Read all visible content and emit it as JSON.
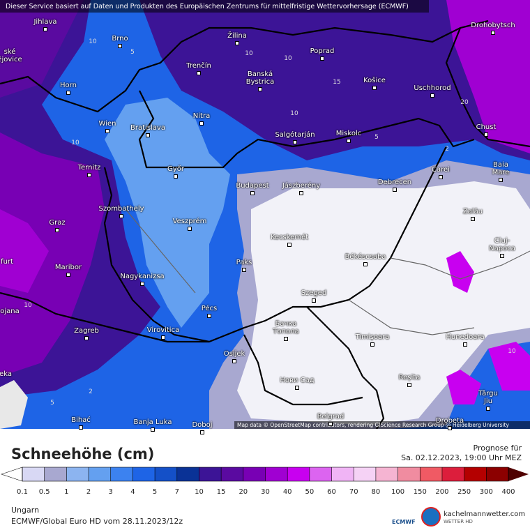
{
  "header": {
    "notice": "Dieser Service basiert auf Daten und Produkten des Europäischen Zentrums für mittelfristige Wettervorhersage (ECMWF)",
    "attribution": "Map data © OpenStreetMap contributors, rendering GIScience Research Group @ Heidelberg University"
  },
  "map": {
    "cities": [
      "Jihlava",
      "Brno",
      "Žilina",
      "Poprad",
      "Drohobytsch",
      "Trenčín",
      "Banská\nBystrica",
      "Košice",
      "Horn",
      "Uschhorod",
      "Wien",
      "Bratislava",
      "Nitra",
      "Salgótarján",
      "Miskolc",
      "Chust",
      "Ternitz",
      "Győr",
      "Budapest",
      "Jászberény",
      "Debrecen",
      "Carei",
      "Baia Mare",
      "Szombathely",
      "Zalău",
      "Graz",
      "Veszprém",
      "Kecskemét",
      "Cluj-Napoca",
      "Békéscsaba",
      "Paks",
      "Maribor",
      "Nagykanizsa",
      "Szeged",
      "Pécs",
      "Zagreb",
      "Virovitica",
      "Бачка\nТопола",
      "Timișoara",
      "Hunedoara",
      "Osijek",
      "Нови Сад",
      "Reșita",
      "Târgu\nJiu",
      "Bihać",
      "Banja Luka",
      "Doboj",
      "Belgrad",
      "Drobeta",
      "ské\nějovice",
      "furt",
      "ojana",
      "eka"
    ],
    "contour_labels": [
      10,
      5,
      10,
      10,
      15,
      10,
      5,
      20,
      10,
      2,
      5,
      2,
      10,
      10
    ]
  },
  "legend": {
    "title": "Schneehöhe (cm)",
    "ticks": [
      0.1,
      0.5,
      1,
      2,
      3,
      4,
      5,
      7,
      10,
      15,
      20,
      30,
      40,
      50,
      60,
      70,
      80,
      100,
      150,
      200,
      250,
      300,
      400
    ],
    "colors": [
      "#d8d8f4",
      "#a8a8d0",
      "#8cb4f0",
      "#64a0f0",
      "#3c82f0",
      "#1e64e6",
      "#1450c8",
      "#0a3296",
      "#3c1496",
      "#5a0aa0",
      "#7800b4",
      "#a000d2",
      "#c800f0",
      "#dc64f0",
      "#f0b4f5",
      "#f5d2f5",
      "#f5b4d2",
      "#f08ca0",
      "#f05a64",
      "#dc1e3c",
      "#b40000",
      "#8c0000"
    ],
    "under_color": "#ffffff",
    "over_color": "#500000"
  },
  "footer": {
    "forecast_label": "Prognose für",
    "forecast_time": "Sa. 02.12.2023, 19:00 Uhr MEZ",
    "region": "Ungarn",
    "model_run": "ECMWF/Global Euro HD vom  28.11.2023/12z",
    "ecmwf_logo": "ECMWF",
    "site": "kachelmannwetter.com",
    "site_sub": "WETTER HD"
  }
}
